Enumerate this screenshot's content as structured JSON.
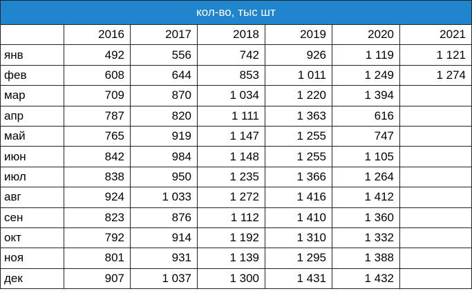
{
  "title": "кол-во, тыс шт",
  "table": {
    "header": [
      null,
      "2016",
      "2017",
      "2018",
      "2019",
      "2020",
      "2021"
    ],
    "rows": [
      [
        "янв",
        "492",
        "556",
        "742",
        "926",
        "1 119",
        "1 121"
      ],
      [
        "фев",
        "608",
        "644",
        "853",
        "1 011",
        "1 249",
        "1 274"
      ],
      [
        "мар",
        "709",
        "870",
        "1 034",
        "1 220",
        "1 394",
        null
      ],
      [
        "апр",
        "787",
        "820",
        "1 111",
        "1 363",
        "616",
        null
      ],
      [
        "май",
        "765",
        "919",
        "1 147",
        "1 255",
        "747",
        null
      ],
      [
        "июн",
        "842",
        "984",
        "1 148",
        "1 255",
        "1 105",
        null
      ],
      [
        "июл",
        "838",
        "950",
        "1 235",
        "1 366",
        "1 264",
        null
      ],
      [
        "авг",
        "924",
        "1 033",
        "1 272",
        "1 416",
        "1 412",
        null
      ],
      [
        "сен",
        "823",
        "876",
        "1 112",
        "1 410",
        "1 360",
        null
      ],
      [
        "окт",
        "792",
        "914",
        "1 192",
        "1 310",
        "1 332",
        null
      ],
      [
        "ноя",
        "801",
        "931",
        "1 139",
        "1 295",
        "1 388",
        null
      ],
      [
        "дек",
        "907",
        "1 037",
        "1 300",
        "1 431",
        "1 432",
        null
      ]
    ]
  }
}
